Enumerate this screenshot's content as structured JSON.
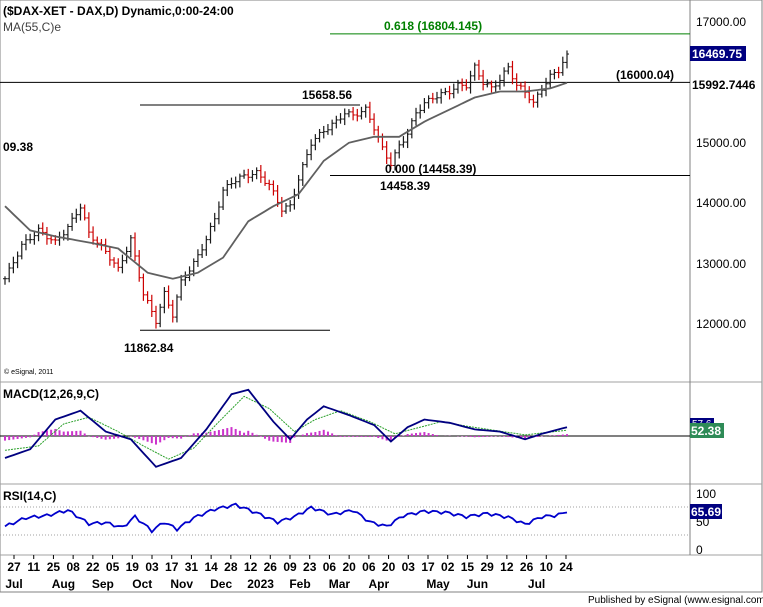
{
  "header": {
    "symbol_line": "($DAX-XET - DAX,D) Dynamic,0:00-24:00",
    "ma_label": "MA(55,C)e",
    "copyright": "© eSignal, 2011",
    "left_partial_label": "09.38",
    "footer": "Published by eSignal (www.esignal.com)"
  },
  "price_panel": {
    "ylim": [
      11400,
      17300
    ],
    "yticks": [
      "17000.00",
      "16000.00",
      "15000.00",
      "14000.00",
      "13000.00",
      "12000.00"
    ],
    "last_price": "16469.75",
    "ma_value": "15992.7446",
    "fib_618": "0.618 (16804.145)",
    "fib_000": "0.000 (14458.39)",
    "high_label": "15658.56",
    "low_label": "11862.84",
    "support_label": "(16000.04)",
    "swing_low_label": "14458.39",
    "colors": {
      "up": "#1a1a1a",
      "down": "#cc0000",
      "ma": "#606060",
      "fib": "#008000",
      "hline": "#000000"
    }
  },
  "macd_panel": {
    "title": "MACD(12,26,9,C)",
    "value_label": "52.38",
    "hidden_label": "57.6",
    "colors": {
      "macd": "#000080",
      "signal": "#2aa02a",
      "hist": "#cc33cc",
      "badge": "#2e8b57"
    }
  },
  "rsi_panel": {
    "title": "RSI(14,C)",
    "ticks": [
      "100",
      "50",
      "0"
    ],
    "value_label": "65.69",
    "colors": {
      "rsi": "#0000cc",
      "badge": "#000080"
    }
  },
  "xaxis": {
    "day_ticks": [
      "27",
      "11",
      "25",
      "08",
      "22",
      "05",
      "19",
      "03",
      "17",
      "31",
      "14",
      "28",
      "12",
      "26",
      "09",
      "23",
      "06",
      "20",
      "06",
      "20",
      "03",
      "17",
      "02",
      "15",
      "29",
      "12",
      "26",
      "10",
      "24"
    ],
    "month_labels": [
      "Jul",
      "Aug",
      "Sep",
      "Oct",
      "Nov",
      "Dec",
      "2023",
      "Feb",
      "Mar",
      "Apr",
      "May",
      "Jun",
      "Jul"
    ]
  },
  "chart_data": [
    {
      "type": "ohlc",
      "title": "($DAX-XET - DAX,D) Dynamic,0:00-24:00",
      "ylim": [
        11400,
        17300
      ],
      "anchors": [
        {
          "x": 0,
          "y": 12750
        },
        {
          "x": 4,
          "y": 13300
        },
        {
          "x": 8,
          "y": 13550
        },
        {
          "x": 12,
          "y": 13350
        },
        {
          "x": 15,
          "y": 13600
        },
        {
          "x": 18,
          "y": 13950
        },
        {
          "x": 20,
          "y": 13500
        },
        {
          "x": 24,
          "y": 13200
        },
        {
          "x": 27,
          "y": 12900
        },
        {
          "x": 30,
          "y": 13400
        },
        {
          "x": 33,
          "y": 12500
        },
        {
          "x": 36,
          "y": 12050
        },
        {
          "x": 38,
          "y": 12500
        },
        {
          "x": 40,
          "y": 12150
        },
        {
          "x": 42,
          "y": 12700
        },
        {
          "x": 45,
          "y": 13000
        },
        {
          "x": 48,
          "y": 13400
        },
        {
          "x": 50,
          "y": 13750
        },
        {
          "x": 52,
          "y": 14200
        },
        {
          "x": 54,
          "y": 14350
        },
        {
          "x": 57,
          "y": 14450
        },
        {
          "x": 60,
          "y": 14500
        },
        {
          "x": 63,
          "y": 14300
        },
        {
          "x": 66,
          "y": 13900
        },
        {
          "x": 68,
          "y": 13950
        },
        {
          "x": 70,
          "y": 14400
        },
        {
          "x": 73,
          "y": 15000
        },
        {
          "x": 76,
          "y": 15200
        },
        {
          "x": 79,
          "y": 15350
        },
        {
          "x": 81,
          "y": 15500
        },
        {
          "x": 83,
          "y": 15450
        },
        {
          "x": 86,
          "y": 15550
        },
        {
          "x": 88,
          "y": 15250
        },
        {
          "x": 90,
          "y": 14900
        },
        {
          "x": 92,
          "y": 14650
        },
        {
          "x": 94,
          "y": 14950
        },
        {
          "x": 96,
          "y": 15150
        },
        {
          "x": 98,
          "y": 15500
        },
        {
          "x": 100,
          "y": 15650
        },
        {
          "x": 102,
          "y": 15750
        },
        {
          "x": 104,
          "y": 15800
        },
        {
          "x": 106,
          "y": 15850
        },
        {
          "x": 108,
          "y": 15950
        },
        {
          "x": 110,
          "y": 15950
        },
        {
          "x": 112,
          "y": 16250
        },
        {
          "x": 114,
          "y": 16000
        },
        {
          "x": 116,
          "y": 15900
        },
        {
          "x": 118,
          "y": 16050
        },
        {
          "x": 120,
          "y": 16250
        },
        {
          "x": 122,
          "y": 15950
        },
        {
          "x": 124,
          "y": 15850
        },
        {
          "x": 126,
          "y": 15650
        },
        {
          "x": 128,
          "y": 15900
        },
        {
          "x": 130,
          "y": 16100
        },
        {
          "x": 132,
          "y": 16200
        },
        {
          "x": 134,
          "y": 16469.75
        }
      ],
      "ma_anchors": [
        {
          "x": 0,
          "y": 13950
        },
        {
          "x": 6,
          "y": 13550
        },
        {
          "x": 12,
          "y": 13450
        },
        {
          "x": 20,
          "y": 13350
        },
        {
          "x": 27,
          "y": 13250
        },
        {
          "x": 34,
          "y": 12850
        },
        {
          "x": 40,
          "y": 12750
        },
        {
          "x": 46,
          "y": 12850
        },
        {
          "x": 52,
          "y": 13100
        },
        {
          "x": 58,
          "y": 13700
        },
        {
          "x": 64,
          "y": 13950
        },
        {
          "x": 70,
          "y": 14150
        },
        {
          "x": 76,
          "y": 14700
        },
        {
          "x": 82,
          "y": 15000
        },
        {
          "x": 88,
          "y": 15100
        },
        {
          "x": 94,
          "y": 15100
        },
        {
          "x": 100,
          "y": 15350
        },
        {
          "x": 106,
          "y": 15550
        },
        {
          "x": 112,
          "y": 15750
        },
        {
          "x": 118,
          "y": 15850
        },
        {
          "x": 124,
          "y": 15850
        },
        {
          "x": 130,
          "y": 15900
        },
        {
          "x": 134,
          "y": 15992.7446
        }
      ],
      "levels": [
        {
          "label": "0.618 (16804.145)",
          "y": 16804.145
        },
        {
          "label": "(16000.04)",
          "y": 16000.04
        },
        {
          "label": "15658.56",
          "y": 15658.56
        },
        {
          "label": "0.000 (14458.39)",
          "y": 14458.39
        },
        {
          "label": "11862.84",
          "y": 11862.84
        }
      ],
      "last": 16469.75
    },
    {
      "type": "line",
      "title": "MACD(12,26,9,C)",
      "series": [
        {
          "name": "MACD",
          "anchors": [
            {
              "x": 0,
              "y": -200
            },
            {
              "x": 6,
              "y": -120
            },
            {
              "x": 12,
              "y": 150
            },
            {
              "x": 18,
              "y": 230
            },
            {
              "x": 24,
              "y": 40
            },
            {
              "x": 30,
              "y": -30
            },
            {
              "x": 36,
              "y": -280
            },
            {
              "x": 42,
              "y": -200
            },
            {
              "x": 48,
              "y": 60
            },
            {
              "x": 54,
              "y": 380
            },
            {
              "x": 58,
              "y": 420
            },
            {
              "x": 64,
              "y": 130
            },
            {
              "x": 68,
              "y": -30
            },
            {
              "x": 72,
              "y": 150
            },
            {
              "x": 76,
              "y": 270
            },
            {
              "x": 82,
              "y": 190
            },
            {
              "x": 88,
              "y": 100
            },
            {
              "x": 92,
              "y": -50
            },
            {
              "x": 96,
              "y": 80
            },
            {
              "x": 100,
              "y": 150
            },
            {
              "x": 106,
              "y": 120
            },
            {
              "x": 112,
              "y": 60
            },
            {
              "x": 118,
              "y": 40
            },
            {
              "x": 124,
              "y": -30
            },
            {
              "x": 128,
              "y": 20
            },
            {
              "x": 134,
              "y": 80
            }
          ]
        },
        {
          "name": "Signal",
          "anchors": [
            {
              "x": 0,
              "y": -130
            },
            {
              "x": 8,
              "y": -90
            },
            {
              "x": 14,
              "y": 110
            },
            {
              "x": 20,
              "y": 170
            },
            {
              "x": 27,
              "y": 40
            },
            {
              "x": 33,
              "y": -90
            },
            {
              "x": 39,
              "y": -210
            },
            {
              "x": 45,
              "y": -110
            },
            {
              "x": 51,
              "y": 130
            },
            {
              "x": 57,
              "y": 360
            },
            {
              "x": 63,
              "y": 250
            },
            {
              "x": 69,
              "y": 40
            },
            {
              "x": 74,
              "y": 150
            },
            {
              "x": 80,
              "y": 230
            },
            {
              "x": 87,
              "y": 130
            },
            {
              "x": 93,
              "y": 20
            },
            {
              "x": 98,
              "y": 70
            },
            {
              "x": 104,
              "y": 130
            },
            {
              "x": 110,
              "y": 90
            },
            {
              "x": 117,
              "y": 50
            },
            {
              "x": 124,
              "y": 10
            },
            {
              "x": 134,
              "y": 52.38
            }
          ]
        }
      ],
      "ylim": [
        -400,
        500
      ],
      "last": 52.38
    },
    {
      "type": "line",
      "title": "RSI(14,C)",
      "ylim": [
        0,
        100
      ],
      "series": [
        {
          "name": "RSI",
          "anchors": [
            {
              "x": 0,
              "y": 40
            },
            {
              "x": 5,
              "y": 56
            },
            {
              "x": 10,
              "y": 60
            },
            {
              "x": 15,
              "y": 70
            },
            {
              "x": 20,
              "y": 45
            },
            {
              "x": 24,
              "y": 47
            },
            {
              "x": 28,
              "y": 38
            },
            {
              "x": 31,
              "y": 58
            },
            {
              "x": 35,
              "y": 32
            },
            {
              "x": 38,
              "y": 48
            },
            {
              "x": 41,
              "y": 35
            },
            {
              "x": 45,
              "y": 56
            },
            {
              "x": 50,
              "y": 72
            },
            {
              "x": 55,
              "y": 80
            },
            {
              "x": 60,
              "y": 65
            },
            {
              "x": 65,
              "y": 48
            },
            {
              "x": 69,
              "y": 58
            },
            {
              "x": 73,
              "y": 75
            },
            {
              "x": 78,
              "y": 62
            },
            {
              "x": 83,
              "y": 70
            },
            {
              "x": 87,
              "y": 48
            },
            {
              "x": 91,
              "y": 40
            },
            {
              "x": 95,
              "y": 60
            },
            {
              "x": 100,
              "y": 68
            },
            {
              "x": 105,
              "y": 66
            },
            {
              "x": 110,
              "y": 58
            },
            {
              "x": 115,
              "y": 64
            },
            {
              "x": 120,
              "y": 57
            },
            {
              "x": 124,
              "y": 44
            },
            {
              "x": 128,
              "y": 58
            },
            {
              "x": 131,
              "y": 60
            },
            {
              "x": 134,
              "y": 65.69
            }
          ]
        }
      ],
      "last": 65.69
    }
  ]
}
